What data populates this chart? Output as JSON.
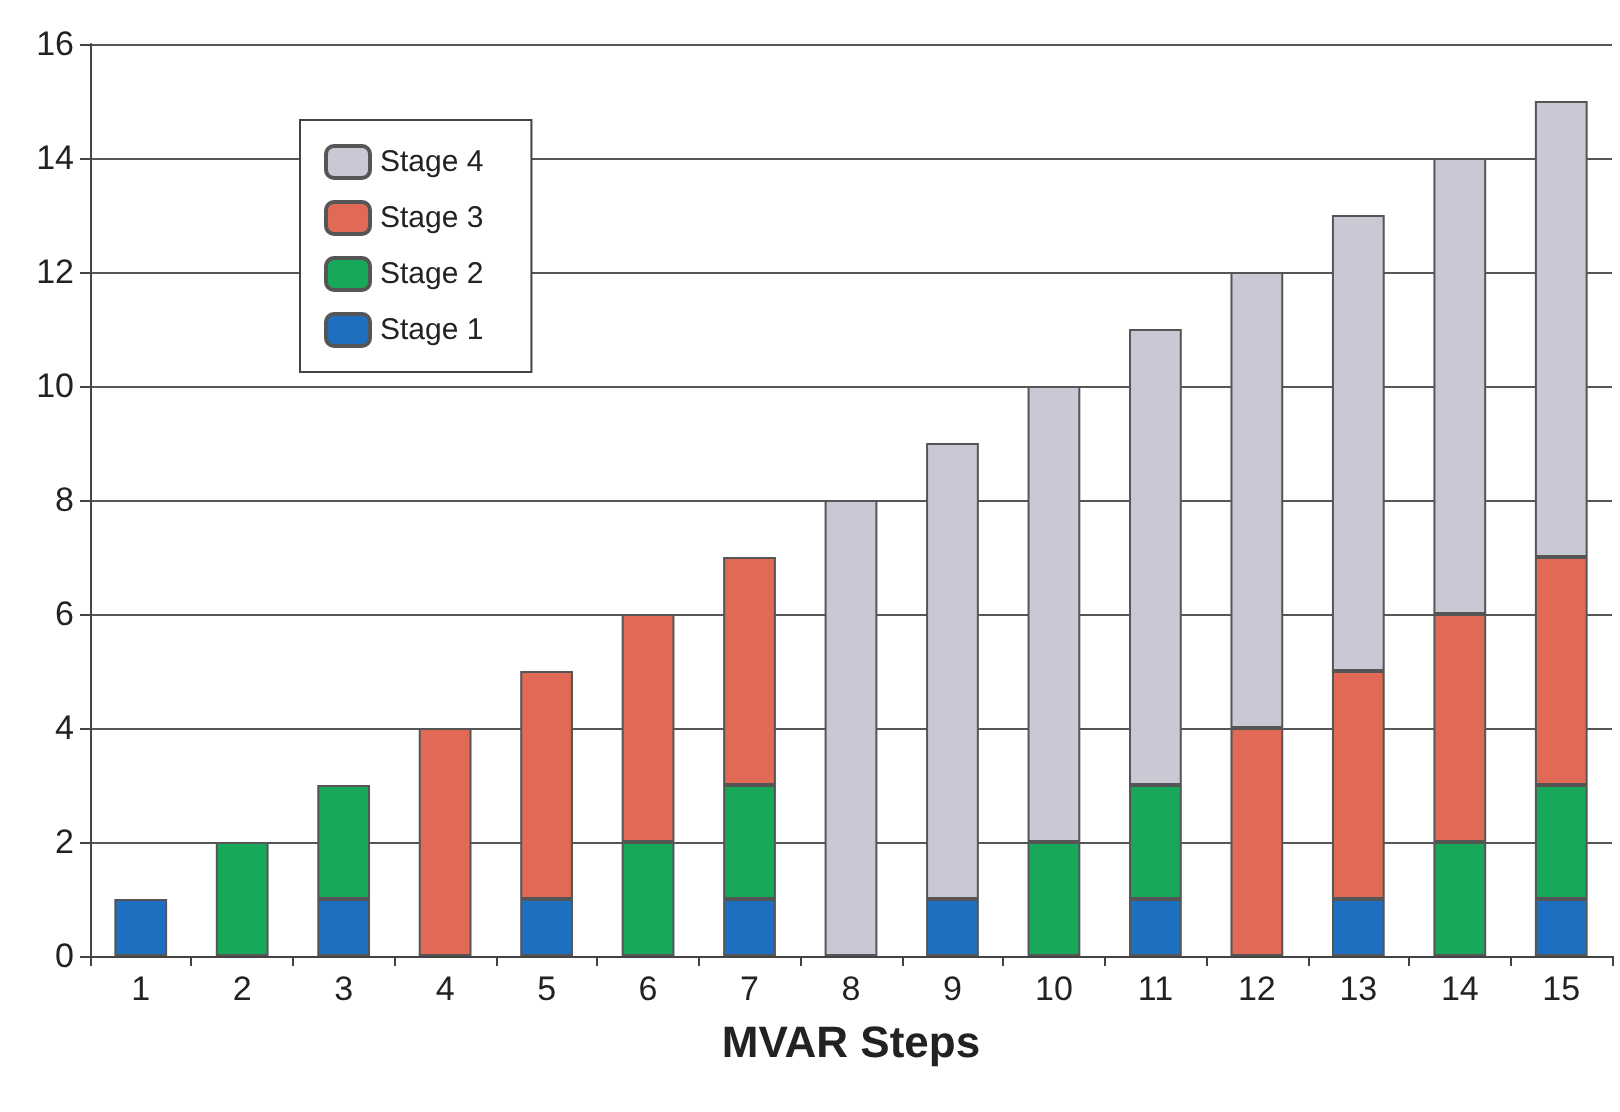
{
  "chart_data": {
    "type": "bar",
    "stacked": true,
    "xlabel": "MVAR Steps",
    "categories": [
      "1",
      "2",
      "3",
      "4",
      "5",
      "6",
      "7",
      "8",
      "9",
      "10",
      "11",
      "12",
      "13",
      "14",
      "15"
    ],
    "series": [
      {
        "name": "Stage 1",
        "color": "#1f6fc0",
        "values": [
          1,
          null,
          1,
          null,
          1,
          null,
          1,
          null,
          1,
          null,
          1,
          null,
          1,
          null,
          1
        ]
      },
      {
        "name": "Stage 2",
        "color": "#17a85a",
        "values": [
          null,
          2,
          2,
          null,
          null,
          2,
          2,
          null,
          null,
          2,
          2,
          null,
          null,
          2,
          2
        ]
      },
      {
        "name": "Stage 3",
        "color": "#e06a55",
        "values": [
          null,
          null,
          null,
          4,
          4,
          4,
          4,
          null,
          null,
          null,
          null,
          4,
          4,
          4,
          4
        ]
      },
      {
        "name": "Stage 4",
        "color": "#c9c9d6",
        "values": [
          null,
          null,
          null,
          null,
          null,
          null,
          null,
          8,
          8,
          8,
          8,
          8,
          8,
          8,
          8
        ]
      }
    ],
    "ylim": [
      0,
      16
    ],
    "yticks": [
      0,
      2,
      4,
      6,
      8,
      10,
      12,
      14,
      16
    ],
    "grid": "y",
    "legend": "top left"
  }
}
